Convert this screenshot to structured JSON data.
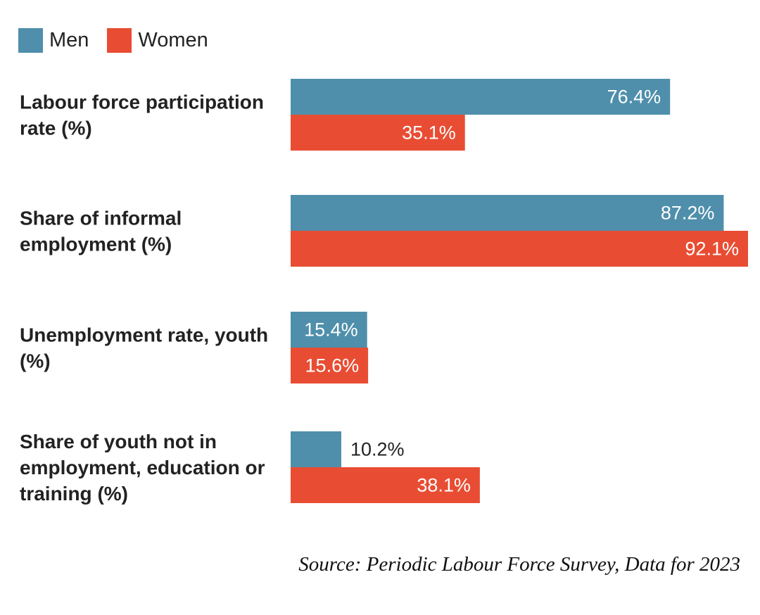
{
  "legend": {
    "men_label": "Men",
    "women_label": "Women"
  },
  "colors": {
    "men": "#4f8fab",
    "women": "#e84d33",
    "label_text": "#222222",
    "value_dark": "#222222",
    "value_light": "#ffffff"
  },
  "chart_data": {
    "type": "bar",
    "orientation": "horizontal",
    "title": "",
    "xlabel": "",
    "ylabel": "",
    "xlim": [
      0,
      92.1
    ],
    "grid": false,
    "legend_position": "top-left",
    "categories": [
      [
        "Labour force participation",
        "rate (%)"
      ],
      [
        "Share of informal",
        "employment (%)"
      ],
      [
        "Unemployment rate, youth",
        "(%)"
      ],
      [
        "Share of youth not in",
        "employment, education or",
        "training (%)"
      ]
    ],
    "series": [
      {
        "name": "Men",
        "values": [
          76.4,
          87.2,
          15.4,
          10.2
        ],
        "labels": [
          "76.4%",
          "87.2%",
          "15.4%",
          "10.2%"
        ]
      },
      {
        "name": "Women",
        "values": [
          35.1,
          92.1,
          15.6,
          38.1
        ],
        "labels": [
          "35.1%",
          "92.1%",
          "15.6%",
          "38.1%"
        ]
      }
    ]
  },
  "source": "Source: Periodic Labour Force Survey, Data for 2023"
}
